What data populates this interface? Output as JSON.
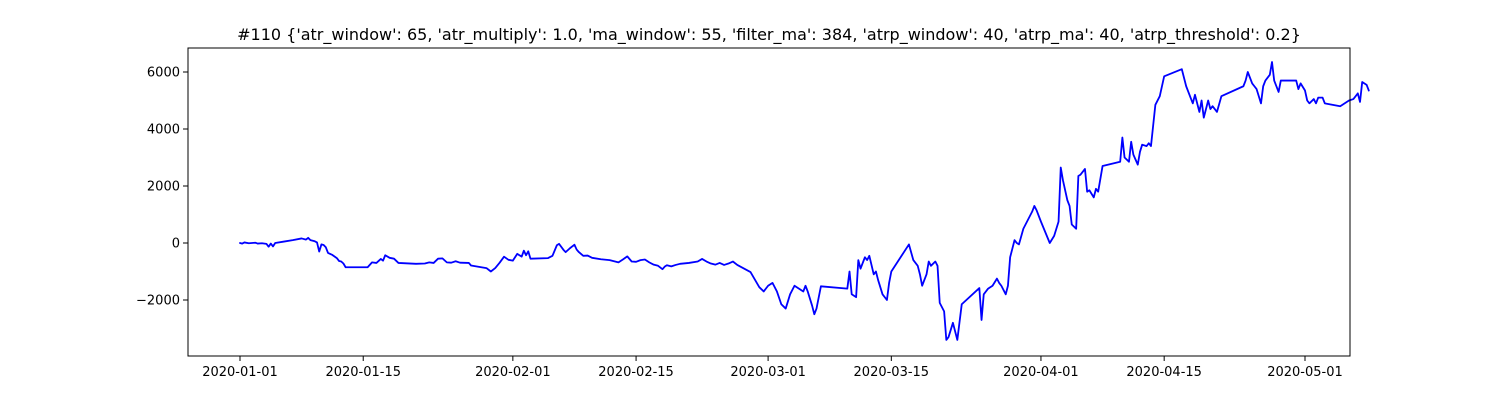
{
  "chart_data": {
    "type": "line",
    "title": "#110 {'atr_window': 65, 'atr_multiply': 1.0, 'ma_window': 55, 'filter_ma': 384, 'atrp_window': 40, 'atrp_ma': 40, 'atrp_threshold': 0.2}",
    "xlabel": "",
    "ylabel": "",
    "xlim": [
      "2019-12-27",
      "2020-05-02"
    ],
    "ylim": [
      -3900,
      6800
    ],
    "grid": false,
    "x_ticks": [
      "2020-01-01",
      "2020-01-15",
      "2020-02-01",
      "2020-02-15",
      "2020-03-01",
      "2020-03-15",
      "2020-04-01",
      "2020-04-15",
      "2020-05-01"
    ],
    "y_ticks": [
      -2000,
      0,
      2000,
      4000,
      6000
    ],
    "y_tick_labels": [
      "−2000",
      "0",
      "2000",
      "4000",
      "6000"
    ],
    "series": [
      {
        "color": "#0000ff",
        "points": [
          [
            "2020-01-01",
            0
          ],
          [
            "2020-01-01 06:00",
            -20
          ],
          [
            "2020-01-01 12:00",
            20
          ],
          [
            "2020-01-02",
            -10
          ],
          [
            "2020-01-02 18:00",
            10
          ],
          [
            "2020-01-03",
            -20
          ],
          [
            "2020-01-03 12:00",
            -10
          ],
          [
            "2020-01-04",
            -30
          ],
          [
            "2020-01-04 06:00",
            -130
          ],
          [
            "2020-01-04 12:00",
            -20
          ],
          [
            "2020-01-04 18:00",
            -120
          ],
          [
            "2020-01-05",
            0
          ],
          [
            "2020-01-06",
            50
          ],
          [
            "2020-01-07",
            100
          ],
          [
            "2020-01-08",
            160
          ],
          [
            "2020-01-08 12:00",
            120
          ],
          [
            "2020-01-08 18:00",
            180
          ],
          [
            "2020-01-09",
            100
          ],
          [
            "2020-01-09 12:00",
            60
          ],
          [
            "2020-01-09 18:00",
            20
          ],
          [
            "2020-01-10",
            -300
          ],
          [
            "2020-01-10 06:00",
            -50
          ],
          [
            "2020-01-10 12:00",
            -70
          ],
          [
            "2020-01-10 18:00",
            -150
          ],
          [
            "2020-01-11",
            -350
          ],
          [
            "2020-01-11 12:00",
            -420
          ],
          [
            "2020-01-12",
            -530
          ],
          [
            "2020-01-12 06:00",
            -630
          ],
          [
            "2020-01-12 12:00",
            -650
          ],
          [
            "2020-01-12 18:00",
            -720
          ],
          [
            "2020-01-13",
            -850
          ],
          [
            "2020-01-15 12:00",
            -850
          ],
          [
            "2020-01-16",
            -680
          ],
          [
            "2020-01-16 12:00",
            -700
          ],
          [
            "2020-01-17",
            -560
          ],
          [
            "2020-01-17 06:00",
            -620
          ],
          [
            "2020-01-17 12:00",
            -430
          ],
          [
            "2020-01-18",
            -520
          ],
          [
            "2020-01-18 12:00",
            -550
          ],
          [
            "2020-01-19",
            -700
          ],
          [
            "2020-01-21",
            -730
          ],
          [
            "2020-01-22",
            -720
          ],
          [
            "2020-01-22 12:00",
            -680
          ],
          [
            "2020-01-23",
            -700
          ],
          [
            "2020-01-23 12:00",
            -550
          ],
          [
            "2020-01-24",
            -540
          ],
          [
            "2020-01-24 12:00",
            -680
          ],
          [
            "2020-01-25",
            -690
          ],
          [
            "2020-01-25 12:00",
            -640
          ],
          [
            "2020-01-26",
            -690
          ],
          [
            "2020-01-27",
            -700
          ],
          [
            "2020-01-27 06:00",
            -790
          ],
          [
            "2020-01-29",
            -880
          ],
          [
            "2020-01-29 12:00",
            -1000
          ],
          [
            "2020-01-30",
            -880
          ],
          [
            "2020-01-30 12:00",
            -690
          ],
          [
            "2020-01-31",
            -480
          ],
          [
            "2020-01-31 12:00",
            -590
          ],
          [
            "2020-02-01",
            -620
          ],
          [
            "2020-02-01 12:00",
            -380
          ],
          [
            "2020-02-02",
            -480
          ],
          [
            "2020-02-02 06:00",
            -270
          ],
          [
            "2020-02-02 12:00",
            -430
          ],
          [
            "2020-02-02 18:00",
            -290
          ],
          [
            "2020-02-03",
            -550
          ],
          [
            "2020-02-05",
            -530
          ],
          [
            "2020-02-05 12:00",
            -450
          ],
          [
            "2020-02-06",
            -80
          ],
          [
            "2020-02-06 06:00",
            -30
          ],
          [
            "2020-02-06 18:00",
            -240
          ],
          [
            "2020-02-07",
            -320
          ],
          [
            "2020-02-07 12:00",
            -180
          ],
          [
            "2020-02-08",
            -60
          ],
          [
            "2020-02-08 06:00",
            -230
          ],
          [
            "2020-02-08 12:00",
            -320
          ],
          [
            "2020-02-09",
            -450
          ],
          [
            "2020-02-09 12:00",
            -440
          ],
          [
            "2020-02-10",
            -520
          ],
          [
            "2020-02-11",
            -570
          ],
          [
            "2020-02-12",
            -600
          ],
          [
            "2020-02-13",
            -680
          ],
          [
            "2020-02-13 12:00",
            -580
          ],
          [
            "2020-02-14",
            -470
          ],
          [
            "2020-02-14 12:00",
            -650
          ],
          [
            "2020-02-15",
            -660
          ],
          [
            "2020-02-15 12:00",
            -600
          ],
          [
            "2020-02-16",
            -580
          ],
          [
            "2020-02-16 12:00",
            -680
          ],
          [
            "2020-02-17",
            -760
          ],
          [
            "2020-02-17 12:00",
            -800
          ],
          [
            "2020-02-18",
            -920
          ],
          [
            "2020-02-18 06:00",
            -830
          ],
          [
            "2020-02-18 12:00",
            -780
          ],
          [
            "2020-02-19",
            -820
          ],
          [
            "2020-02-19 12:00",
            -770
          ],
          [
            "2020-02-20",
            -730
          ],
          [
            "2020-02-21",
            -700
          ],
          [
            "2020-02-22",
            -650
          ],
          [
            "2020-02-22 12:00",
            -560
          ],
          [
            "2020-02-23",
            -650
          ],
          [
            "2020-02-23 12:00",
            -720
          ],
          [
            "2020-02-24",
            -760
          ],
          [
            "2020-02-24 12:00",
            -700
          ],
          [
            "2020-02-25",
            -770
          ],
          [
            "2020-02-25 12:00",
            -720
          ],
          [
            "2020-02-26",
            -650
          ],
          [
            "2020-02-26 12:00",
            -770
          ],
          [
            "2020-02-28",
            -1020
          ],
          [
            "2020-02-29",
            -1550
          ],
          [
            "2020-02-29 12:00",
            -1700
          ],
          [
            "2020-03-01",
            -1500
          ],
          [
            "2020-03-01 12:00",
            -1400
          ],
          [
            "2020-03-02",
            -1700
          ],
          [
            "2020-03-02 12:00",
            -2150
          ],
          [
            "2020-03-03",
            -2300
          ],
          [
            "2020-03-03 12:00",
            -1800
          ],
          [
            "2020-03-04",
            -1500
          ],
          [
            "2020-03-04 12:00",
            -1600
          ],
          [
            "2020-03-05",
            -1700
          ],
          [
            "2020-03-05 06:00",
            -1500
          ],
          [
            "2020-03-05 12:00",
            -1700
          ],
          [
            "2020-03-06",
            -2200
          ],
          [
            "2020-03-06 06:00",
            -2500
          ],
          [
            "2020-03-06 12:00",
            -2300
          ],
          [
            "2020-03-07",
            -1520
          ],
          [
            "2020-03-10",
            -1600
          ],
          [
            "2020-03-10 06:00",
            -1000
          ],
          [
            "2020-03-10 12:00",
            -1800
          ],
          [
            "2020-03-11",
            -1900
          ],
          [
            "2020-03-11 06:00",
            -600
          ],
          [
            "2020-03-11 12:00",
            -900
          ],
          [
            "2020-03-12",
            -500
          ],
          [
            "2020-03-12 06:00",
            -600
          ],
          [
            "2020-03-12 12:00",
            -450
          ],
          [
            "2020-03-13",
            -1100
          ],
          [
            "2020-03-13 06:00",
            -1000
          ],
          [
            "2020-03-13 12:00",
            -1300
          ],
          [
            "2020-03-14",
            -1800
          ],
          [
            "2020-03-14 12:00",
            -2000
          ],
          [
            "2020-03-14 18:00",
            -1400
          ],
          [
            "2020-03-15",
            -1000
          ],
          [
            "2020-03-17",
            -50
          ],
          [
            "2020-03-17 12:00",
            -600
          ],
          [
            "2020-03-18",
            -800
          ],
          [
            "2020-03-18 06:00",
            -1100
          ],
          [
            "2020-03-18 12:00",
            -1500
          ],
          [
            "2020-03-19",
            -1100
          ],
          [
            "2020-03-19 06:00",
            -650
          ],
          [
            "2020-03-19 12:00",
            -800
          ],
          [
            "2020-03-20",
            -650
          ],
          [
            "2020-03-20 06:00",
            -800
          ],
          [
            "2020-03-20 12:00",
            -2100
          ],
          [
            "2020-03-21",
            -2400
          ],
          [
            "2020-03-21 06:00",
            -3400
          ],
          [
            "2020-03-21 12:00",
            -3300
          ],
          [
            "2020-03-22",
            -2800
          ],
          [
            "2020-03-22 06:00",
            -3100
          ],
          [
            "2020-03-22 12:00",
            -3400
          ],
          [
            "2020-03-23",
            -2150
          ],
          [
            "2020-03-25",
            -1580
          ],
          [
            "2020-03-25 06:00",
            -2700
          ],
          [
            "2020-03-25 12:00",
            -1800
          ],
          [
            "2020-03-26",
            -1600
          ],
          [
            "2020-03-26 12:00",
            -1500
          ],
          [
            "2020-03-27",
            -1250
          ],
          [
            "2020-03-27 06:00",
            -1400
          ],
          [
            "2020-03-27 12:00",
            -1500
          ],
          [
            "2020-03-28",
            -1800
          ],
          [
            "2020-03-28 06:00",
            -1500
          ],
          [
            "2020-03-28 12:00",
            -500
          ],
          [
            "2020-03-29",
            100
          ],
          [
            "2020-03-29 06:00",
            0
          ],
          [
            "2020-03-29 12:00",
            -50
          ],
          [
            "2020-03-30",
            500
          ],
          [
            "2020-03-31",
            1100
          ],
          [
            "2020-03-31 06:00",
            1300
          ],
          [
            "2020-03-31 12:00",
            1150
          ],
          [
            "2020-04-01",
            750
          ],
          [
            "2020-04-02",
            0
          ],
          [
            "2020-04-02 12:00",
            250
          ],
          [
            "2020-04-03",
            750
          ],
          [
            "2020-04-03 06:00",
            2650
          ],
          [
            "2020-04-03 12:00",
            2200
          ],
          [
            "2020-04-04",
            1500
          ],
          [
            "2020-04-04 06:00",
            1300
          ],
          [
            "2020-04-04 12:00",
            650
          ],
          [
            "2020-04-05",
            500
          ],
          [
            "2020-04-05 06:00",
            2350
          ],
          [
            "2020-04-05 12:00",
            2400
          ],
          [
            "2020-04-06",
            2600
          ],
          [
            "2020-04-06 06:00",
            1800
          ],
          [
            "2020-04-06 12:00",
            1850
          ],
          [
            "2020-04-07",
            1600
          ],
          [
            "2020-04-07 06:00",
            1900
          ],
          [
            "2020-04-07 12:00",
            1800
          ],
          [
            "2020-04-08",
            2700
          ],
          [
            "2020-04-10",
            2850
          ],
          [
            "2020-04-10 06:00",
            3700
          ],
          [
            "2020-04-10 12:00",
            3000
          ],
          [
            "2020-04-11",
            2850
          ],
          [
            "2020-04-11 06:00",
            3550
          ],
          [
            "2020-04-11 12:00",
            3100
          ],
          [
            "2020-04-12",
            2750
          ],
          [
            "2020-04-12 06:00",
            3200
          ],
          [
            "2020-04-12 12:00",
            3450
          ],
          [
            "2020-04-13",
            3400
          ],
          [
            "2020-04-13 06:00",
            3500
          ],
          [
            "2020-04-13 12:00",
            3400
          ],
          [
            "2020-04-14",
            4850
          ],
          [
            "2020-04-14 12:00",
            5150
          ],
          [
            "2020-04-15",
            5850
          ],
          [
            "2020-04-17",
            6100
          ],
          [
            "2020-04-17 12:00",
            5500
          ],
          [
            "2020-04-18",
            5100
          ],
          [
            "2020-04-18 06:00",
            4900
          ],
          [
            "2020-04-18 12:00",
            5200
          ],
          [
            "2020-04-19",
            4600
          ],
          [
            "2020-04-19 06:00",
            5000
          ],
          [
            "2020-04-19 12:00",
            4400
          ],
          [
            "2020-04-20",
            5000
          ],
          [
            "2020-04-20 06:00",
            4700
          ],
          [
            "2020-04-20 12:00",
            4800
          ],
          [
            "2020-04-21",
            4600
          ],
          [
            "2020-04-21 12:00",
            5150
          ],
          [
            "2020-04-24",
            5500
          ],
          [
            "2020-04-24 06:00",
            5700
          ],
          [
            "2020-04-24 12:00",
            6000
          ],
          [
            "2020-04-25",
            5600
          ],
          [
            "2020-04-25 06:00",
            5500
          ],
          [
            "2020-04-25 12:00",
            5400
          ],
          [
            "2020-04-26",
            4900
          ],
          [
            "2020-04-26 06:00",
            5500
          ],
          [
            "2020-04-26 12:00",
            5700
          ],
          [
            "2020-04-27",
            5900
          ],
          [
            "2020-04-27 06:00",
            6350
          ],
          [
            "2020-04-27 12:00",
            5700
          ],
          [
            "2020-04-28",
            5300
          ],
          [
            "2020-04-28 06:00",
            5700
          ],
          [
            "2020-04-30",
            5700
          ],
          [
            "2020-04-30 06:00",
            5400
          ],
          [
            "2020-04-30 12:00",
            5600
          ],
          [
            "2020-05-01",
            5350
          ],
          [
            "2020-05-01 06:00",
            5000
          ],
          [
            "2020-05-01 12:00",
            4900
          ],
          [
            "2020-05-02",
            5050
          ],
          [
            "2020-05-02 06:00",
            4900
          ],
          [
            "2020-05-02 12:00",
            5100
          ],
          [
            "2020-05-03",
            5100
          ],
          [
            "2020-05-03 06:00",
            4900
          ],
          [
            "2020-05-05",
            4800
          ],
          [
            "2020-05-06",
            5000
          ],
          [
            "2020-05-06 12:00",
            5050
          ],
          [
            "2020-05-07",
            5250
          ],
          [
            "2020-05-07 06:00",
            4950
          ],
          [
            "2020-05-07 12:00",
            5650
          ],
          [
            "2020-05-08",
            5550
          ],
          [
            "2020-05-08 06:00",
            5350
          ]
        ]
      }
    ]
  }
}
